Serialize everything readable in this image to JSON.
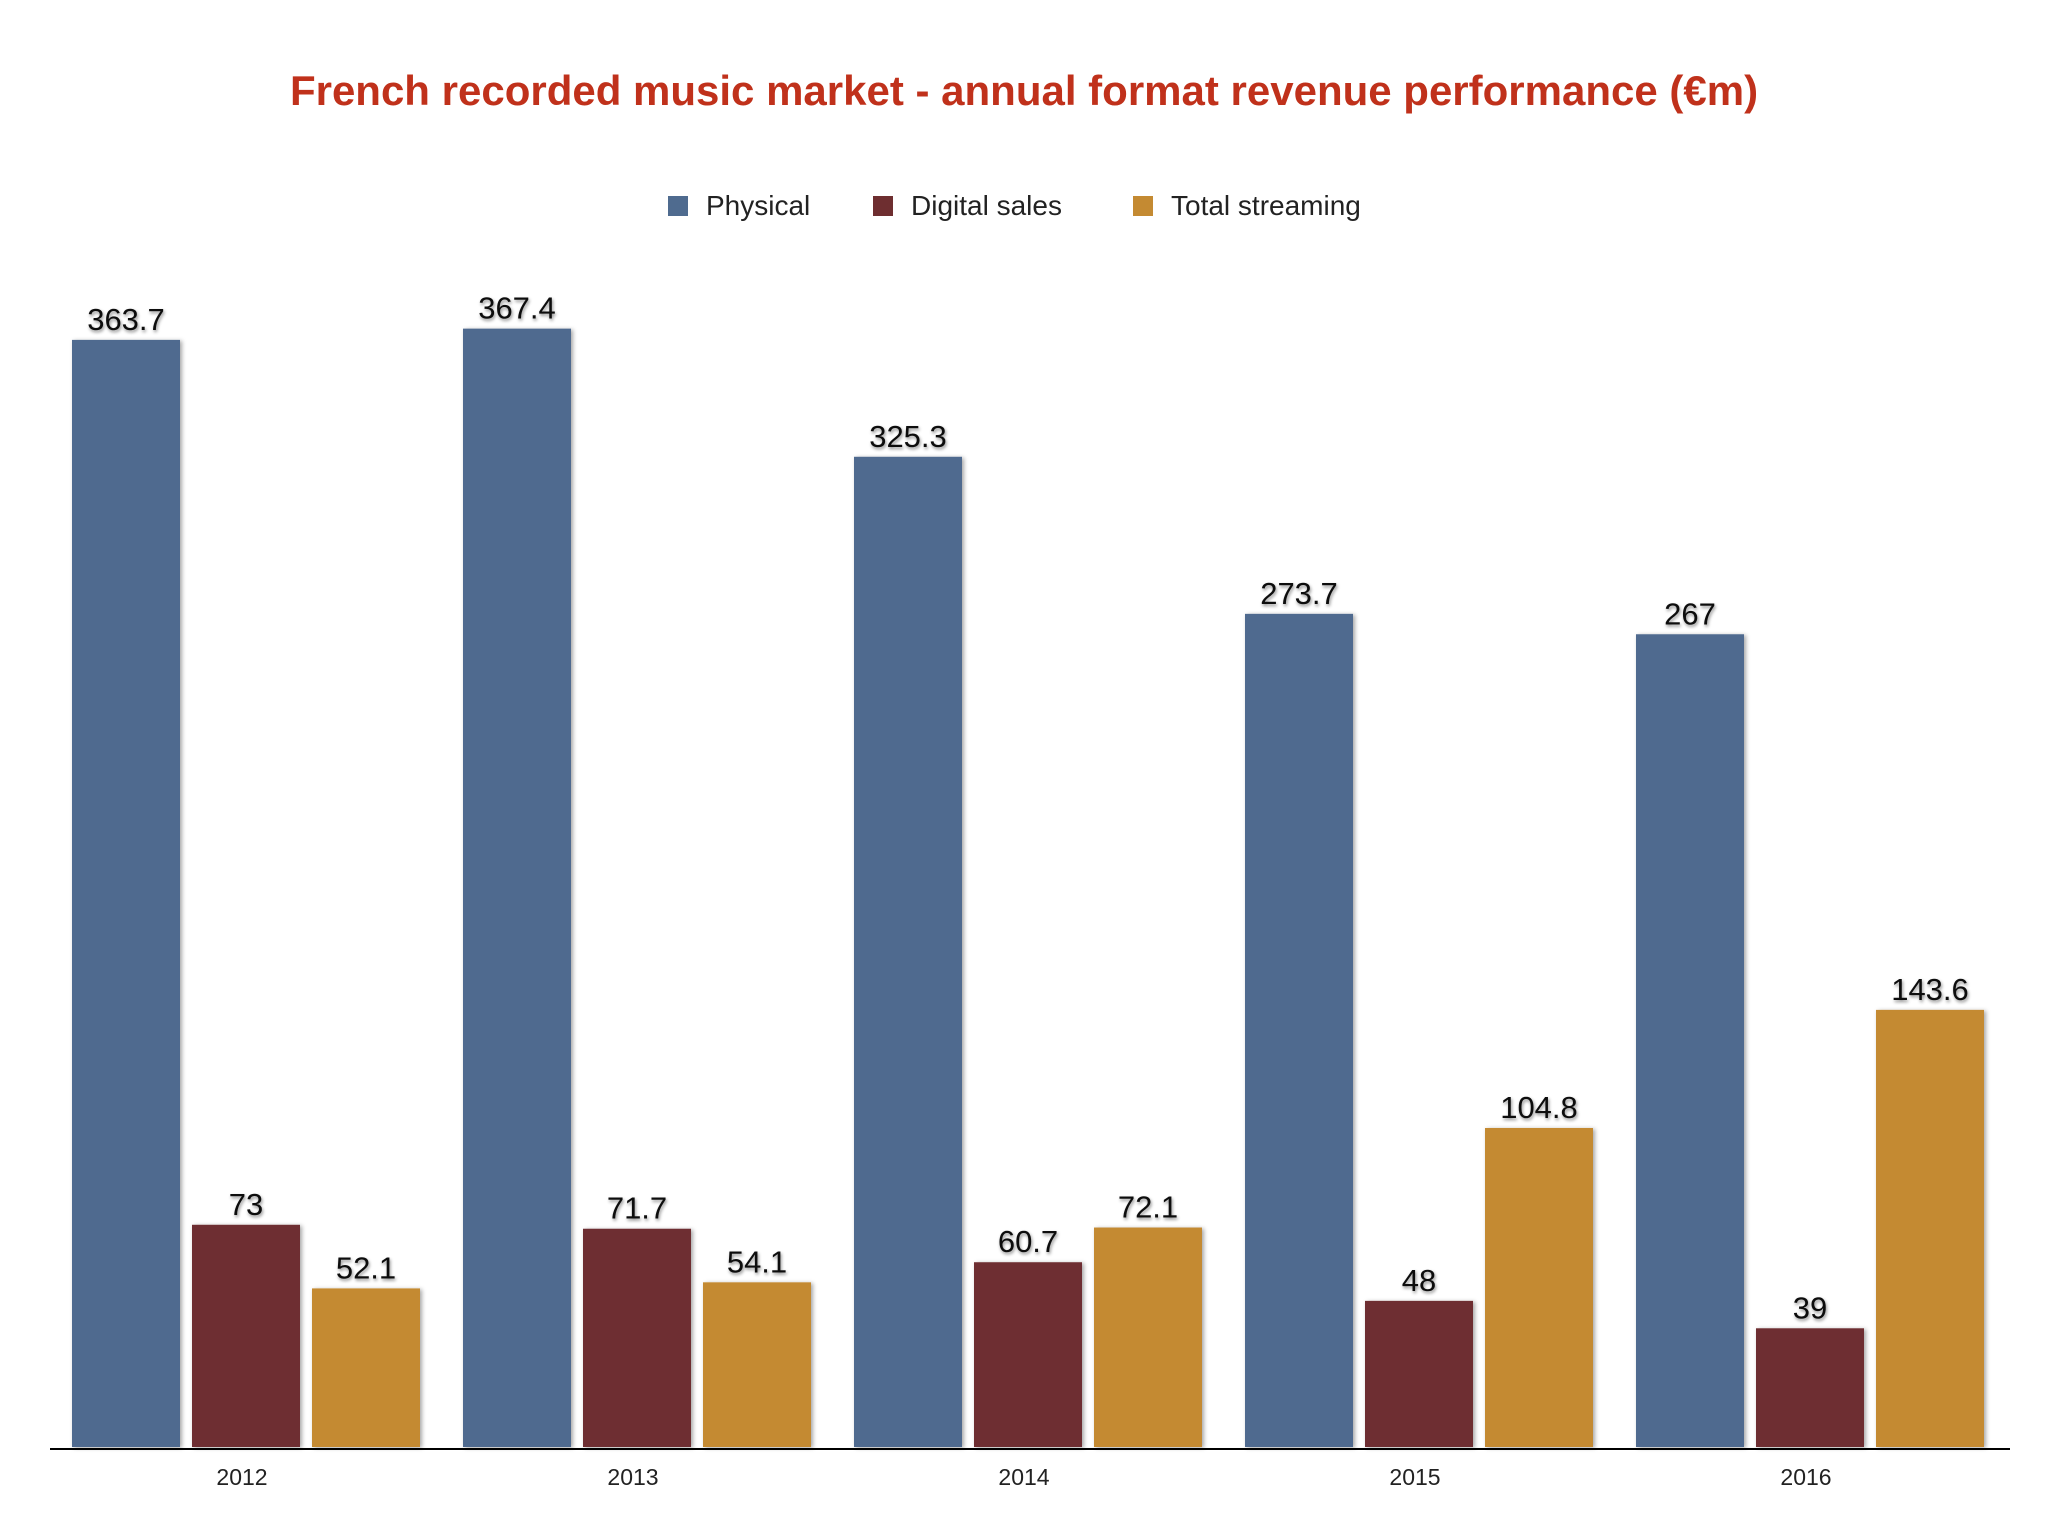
{
  "chart_data": {
    "type": "bar",
    "title": "French recorded music market - annual format revenue performance (€m)",
    "xlabel": "",
    "ylabel": "",
    "ylim": [
      0,
      380
    ],
    "grid": false,
    "legend_position": "top",
    "categories": [
      "2012",
      "2013",
      "2014",
      "2015",
      "2016"
    ],
    "series": [
      {
        "name": "Physical",
        "color": "#4f6b8f",
        "values": [
          363.7,
          367.4,
          325.3,
          273.7,
          267
        ],
        "labels": [
          "363.7",
          "367.4",
          "325.3",
          "273.7",
          "267"
        ]
      },
      {
        "name": "Digital sales",
        "color": "#6e2e30",
        "values": [
          73,
          71.7,
          60.7,
          48,
          39
        ],
        "labels": [
          "73",
          "71.7",
          "60.7",
          "48",
          "39"
        ]
      },
      {
        "name": "Total streaming",
        "color": "#c48a32",
        "values": [
          52.1,
          54.1,
          72.1,
          104.8,
          143.6
        ],
        "labels": [
          "52.1",
          "54.1",
          "72.1",
          "104.8",
          "143.6"
        ]
      }
    ],
    "title_color": "#c0311b"
  }
}
